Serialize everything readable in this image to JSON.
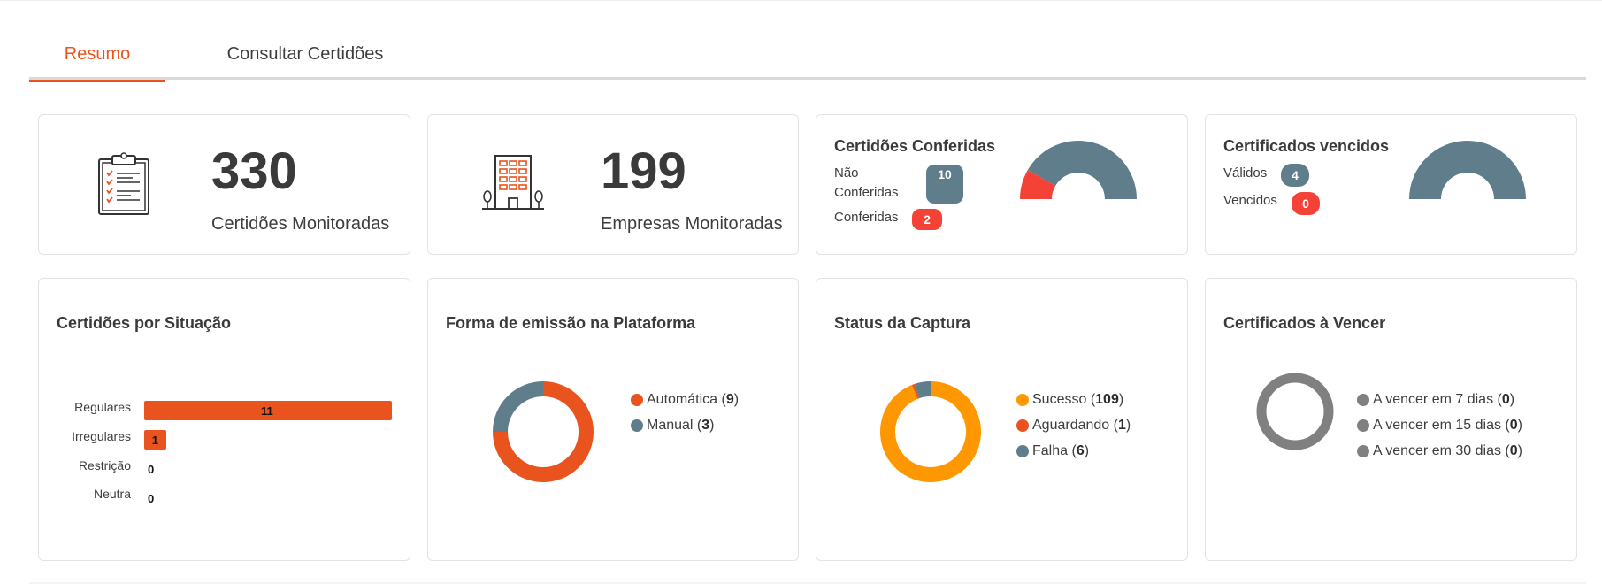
{
  "tabs": [
    {
      "label": "Resumo",
      "active": true
    },
    {
      "label": "Consultar Certidões",
      "active": false
    }
  ],
  "stats": {
    "certidoes": {
      "value": "330",
      "caption": "Certidões Monitoradas",
      "icon": "clipboard-checklist-icon"
    },
    "empresas": {
      "value": "199",
      "caption": "Empresas Monitoradas",
      "icon": "office-building-icon"
    }
  },
  "conferidas": {
    "title": "Certidões Conferidas",
    "nao_label_1": "Não",
    "nao_label_2": "Conferidas",
    "nao_value": "10",
    "conf_label": "Conferidas",
    "conf_value": "2"
  },
  "vencidos": {
    "title": "Certificados vencidos",
    "validos_label": "Válidos",
    "validos_value": "4",
    "vencidos_label": "Vencidos",
    "vencidos_value": "0"
  },
  "situacao": {
    "title": "Certidões por Situação",
    "rows": [
      {
        "label": "Regulares",
        "value": "11"
      },
      {
        "label": "Irregulares",
        "value": "1"
      },
      {
        "label": "Restrição",
        "value": "0"
      },
      {
        "label": "Neutra",
        "value": "0"
      }
    ]
  },
  "emissao": {
    "title": "Forma de emissão na Plataforma",
    "items": [
      {
        "name": "Automática",
        "value": "9"
      },
      {
        "name": "Manual",
        "value": "3"
      }
    ]
  },
  "captura": {
    "title": "Status da Captura",
    "items": [
      {
        "name": "Sucesso",
        "value": "109"
      },
      {
        "name": "Aguardando",
        "value": "1"
      },
      {
        "name": "Falha",
        "value": "6"
      }
    ]
  },
  "vencer": {
    "title": "Certificados à Vencer",
    "items": [
      {
        "name": "A vencer em 7 dias",
        "value": "0"
      },
      {
        "name": "A vencer em 15 dias",
        "value": "0"
      },
      {
        "name": "A vencer em 30 dias",
        "value": "0"
      }
    ]
  },
  "colors": {
    "accent": "#e8531e",
    "slate": "#607d8b",
    "red": "#f44336",
    "amber": "#ff9800",
    "grey": "#808080"
  },
  "chart_data": [
    {
      "type": "pie",
      "categories": [
        "Não Conferidas",
        "Conferidas"
      ],
      "values": [
        10,
        2
      ]
    },
    {
      "type": "pie",
      "categories": [
        "Válidos",
        "Vencidos"
      ],
      "values": [
        4,
        0
      ]
    },
    {
      "type": "bar",
      "title": "Certidões por Situação",
      "categories": [
        "Regulares",
        "Irregulares",
        "Restrição",
        "Neutra"
      ],
      "values": [
        11,
        1,
        0,
        0
      ]
    },
    {
      "type": "pie",
      "title": "Forma de emissão na Plataforma",
      "categories": [
        "Automática",
        "Manual"
      ],
      "values": [
        9,
        3
      ]
    },
    {
      "type": "pie",
      "title": "Status da Captura",
      "categories": [
        "Sucesso",
        "Aguardando",
        "Falha"
      ],
      "values": [
        109,
        1,
        6
      ]
    },
    {
      "type": "pie",
      "title": "Certificados à Vencer",
      "categories": [
        "A vencer em 7 dias",
        "A vencer em 15 dias",
        "A vencer em 30 dias"
      ],
      "values": [
        0,
        0,
        0
      ]
    }
  ]
}
